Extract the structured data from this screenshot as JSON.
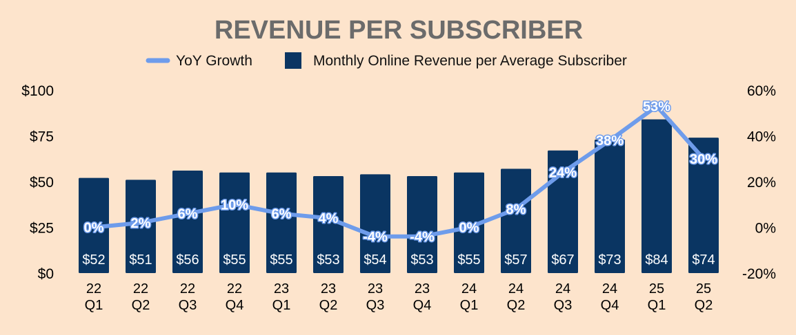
{
  "chart_data": {
    "type": "bar",
    "title": "REVENUE PER SUBSCRIBER",
    "categories": [
      [
        "22",
        "Q1"
      ],
      [
        "22",
        "Q2"
      ],
      [
        "22",
        "Q3"
      ],
      [
        "22",
        "Q4"
      ],
      [
        "23",
        "Q1"
      ],
      [
        "23",
        "Q2"
      ],
      [
        "23",
        "Q3"
      ],
      [
        "23",
        "Q4"
      ],
      [
        "24",
        "Q1"
      ],
      [
        "24",
        "Q2"
      ],
      [
        "24",
        "Q3"
      ],
      [
        "24",
        "Q4"
      ],
      [
        "25",
        "Q1"
      ],
      [
        "25",
        "Q2"
      ]
    ],
    "series": [
      {
        "name": "Monthly Online Revenue per Average Subscriber",
        "type": "bar",
        "axis": "left",
        "values": [
          52,
          51,
          56,
          55,
          55,
          53,
          54,
          53,
          55,
          57,
          67,
          73,
          84,
          74
        ],
        "labels": [
          "$52",
          "$51",
          "$56",
          "$55",
          "$55",
          "$53",
          "$54",
          "$53",
          "$55",
          "$57",
          "$67",
          "$73",
          "$84",
          "$74"
        ],
        "color": "#0a3562"
      },
      {
        "name": "YoY Growth",
        "type": "line",
        "axis": "right",
        "values": [
          0,
          2,
          6,
          10,
          6,
          4,
          -4,
          -4,
          0,
          8,
          24,
          38,
          53,
          30
        ],
        "labels": [
          "0%",
          "2%",
          "6%",
          "10%",
          "6%",
          "4%",
          "-4%",
          "-4%",
          "0%",
          "8%",
          "24%",
          "38%",
          "53%",
          "30%"
        ],
        "color": "#6e9ceb"
      }
    ],
    "legend": [
      "YoY Growth",
      "Monthly Online Revenue per Average Subscriber"
    ],
    "y_left": {
      "range": [
        0,
        100
      ],
      "ticks": [
        0,
        25,
        50,
        75,
        100
      ],
      "tick_labels": [
        "$0",
        "$25",
        "$50",
        "$75",
        "$100"
      ]
    },
    "y_right": {
      "range": [
        -20,
        60
      ],
      "ticks": [
        -20,
        0,
        20,
        40,
        60
      ],
      "tick_labels": [
        "-20%",
        "0%",
        "20%",
        "40%",
        "60%"
      ]
    },
    "colors": {
      "background": "#fde4cc",
      "title": "#6b6b6b",
      "text": "#000000",
      "label_outline": "#6e9ceb"
    }
  }
}
